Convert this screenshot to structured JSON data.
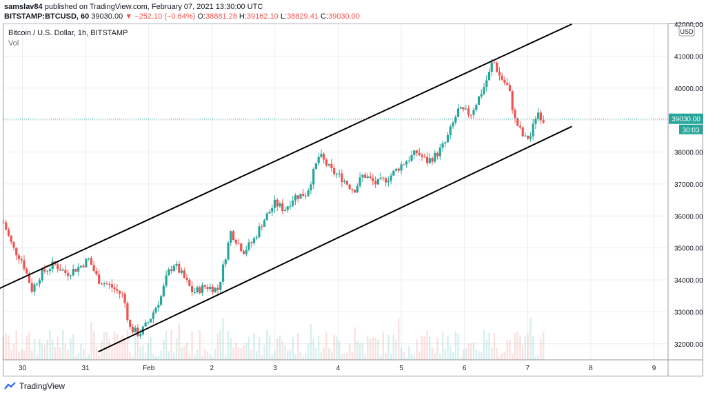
{
  "header": {
    "publisher": "samslav84",
    "published_text": "published on TradingView.com, February 07, 2021 13:30:00 UTC",
    "symbol": "BITSTAMP:BTCUSD, 60",
    "last": "39030.00",
    "change": "▼ −252.10 (−0.64%)",
    "o_label": "O:",
    "o_value": "38881.28",
    "h_label": "H:",
    "h_value": "39162.10",
    "l_label": "L:",
    "l_value": "38829.41",
    "c_label": "C:",
    "c_value": "39030.00"
  },
  "legend": {
    "title": "Bitcoin / U.S. Dollar, 1h, BITSTAMP",
    "vol": "Vol"
  },
  "price_axis": {
    "currency": "USD",
    "last_price_tag": "39030.00",
    "countdown_tag": "30:03"
  },
  "footer": {
    "brand": "TradingView"
  },
  "colors": {
    "up": "#26a69a",
    "down": "#ef5350",
    "trendline": "#000000",
    "grid": "#e9ecf2",
    "axis_text": "#131722"
  },
  "chart_data": {
    "type": "candlestick",
    "title": "Bitcoin / U.S. Dollar, 1h, BITSTAMP",
    "xlabel": "",
    "ylabel": "",
    "ylim": [
      31500,
      42000
    ],
    "y_ticks": [
      32000,
      33000,
      34000,
      35000,
      36000,
      37000,
      38000,
      39000,
      40000,
      41000,
      42000
    ],
    "y_tick_labels": [
      "32000.00",
      "33000.00",
      "34000.00",
      "35000.00",
      "36000.00",
      "37000.00",
      "38000.00",
      "39000.00",
      "40000.00",
      "41000.00",
      "42000.00"
    ],
    "x_tick_labels": [
      {
        "t": 0.3,
        "label": "30"
      },
      {
        "t": 1.3,
        "label": "31"
      },
      {
        "t": 2.3,
        "label": "Feb"
      },
      {
        "t": 3.3,
        "label": "2"
      },
      {
        "t": 4.3,
        "label": "3"
      },
      {
        "t": 5.3,
        "label": "4"
      },
      {
        "t": 6.3,
        "label": "5"
      },
      {
        "t": 7.3,
        "label": "6"
      },
      {
        "t": 8.3,
        "label": "7"
      },
      {
        "t": 9.3,
        "label": "8"
      },
      {
        "t": 10.3,
        "label": "9"
      }
    ],
    "price_path": [
      [
        0.0,
        35800
      ],
      [
        0.15,
        35000
      ],
      [
        0.3,
        34600
      ],
      [
        0.45,
        33700
      ],
      [
        0.6,
        34200
      ],
      [
        0.8,
        34500
      ],
      [
        1.0,
        34200
      ],
      [
        1.2,
        34400
      ],
      [
        1.35,
        34650
      ],
      [
        1.5,
        34000
      ],
      [
        1.7,
        33800
      ],
      [
        1.9,
        33500
      ],
      [
        2.0,
        32500
      ],
      [
        2.15,
        32300
      ],
      [
        2.3,
        32700
      ],
      [
        2.5,
        33500
      ],
      [
        2.6,
        34200
      ],
      [
        2.7,
        34500
      ],
      [
        2.85,
        34100
      ],
      [
        3.0,
        33600
      ],
      [
        3.2,
        33800
      ],
      [
        3.4,
        33700
      ],
      [
        3.6,
        35500
      ],
      [
        3.8,
        34900
      ],
      [
        3.95,
        35200
      ],
      [
        4.1,
        35800
      ],
      [
        4.3,
        36400
      ],
      [
        4.45,
        36200
      ],
      [
        4.6,
        36600
      ],
      [
        4.8,
        36700
      ],
      [
        5.0,
        37900
      ],
      [
        5.2,
        37400
      ],
      [
        5.35,
        37200
      ],
      [
        5.55,
        36800
      ],
      [
        5.7,
        37300
      ],
      [
        5.9,
        37000
      ],
      [
        6.1,
        37200
      ],
      [
        6.3,
        37600
      ],
      [
        6.55,
        38000
      ],
      [
        6.7,
        37700
      ],
      [
        6.85,
        37900
      ],
      [
        7.0,
        38300
      ],
      [
        7.2,
        39300
      ],
      [
        7.4,
        39200
      ],
      [
        7.6,
        40000
      ],
      [
        7.7,
        40500
      ],
      [
        7.75,
        40900
      ],
      [
        7.85,
        40400
      ],
      [
        8.0,
        40000
      ],
      [
        8.1,
        39000
      ],
      [
        8.25,
        38400
      ],
      [
        8.35,
        38500
      ],
      [
        8.45,
        39300
      ],
      [
        8.55,
        39000
      ]
    ],
    "trendlines": [
      {
        "name": "upper channel",
        "from": [
          -0.1,
          33700
        ],
        "to": [
          9.0,
          42000
        ]
      },
      {
        "name": "lower channel",
        "from": [
          1.5,
          31750
        ],
        "to": [
          9.0,
          38800
        ]
      }
    ],
    "last_price": 39030.0
  }
}
